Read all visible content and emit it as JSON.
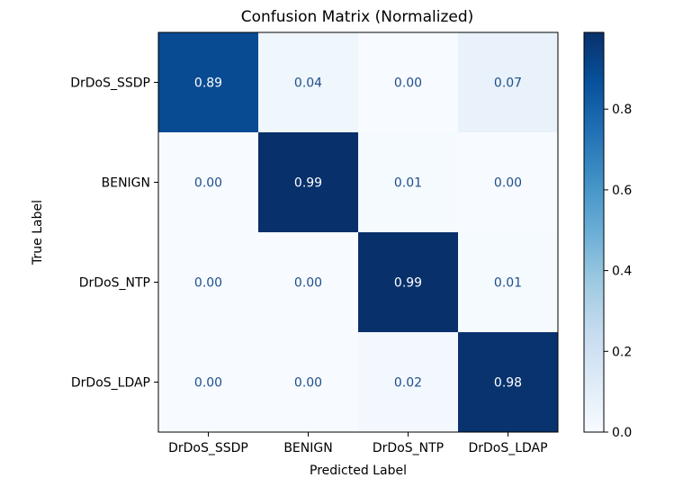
{
  "chart_data": {
    "type": "heatmap",
    "title": "Confusion Matrix (Normalized)",
    "xlabel": "Predicted Label",
    "ylabel": "True Label",
    "x_categories": [
      "DrDoS_SSDP",
      "BENIGN",
      "DrDoS_NTP",
      "DrDoS_LDAP"
    ],
    "y_categories": [
      "DrDoS_SSDP",
      "BENIGN",
      "DrDoS_NTP",
      "DrDoS_LDAP"
    ],
    "values": [
      [
        0.89,
        0.04,
        0.0,
        0.07
      ],
      [
        0.0,
        0.99,
        0.01,
        0.0
      ],
      [
        0.0,
        0.0,
        0.99,
        0.01
      ],
      [
        0.0,
        0.0,
        0.02,
        0.98
      ]
    ],
    "cell_labels": [
      [
        "0.89",
        "0.04",
        "0.00",
        "0.07"
      ],
      [
        "0.00",
        "0.99",
        "0.01",
        "0.00"
      ],
      [
        "0.00",
        "0.00",
        "0.99",
        "0.01"
      ],
      [
        "0.00",
        "0.00",
        "0.02",
        "0.98"
      ]
    ],
    "colormap": "Blues",
    "colorbar": {
      "range": [
        0.0,
        0.99
      ],
      "ticks": [
        0.0,
        0.2,
        0.4,
        0.6,
        0.8
      ],
      "tick_labels": [
        "0.0",
        "0.2",
        "0.4",
        "0.6",
        "0.8"
      ]
    },
    "colors": {
      "text_on_light": "#1f4e8c",
      "text_on_dark": "#ffffff",
      "axis": "#000000"
    }
  }
}
